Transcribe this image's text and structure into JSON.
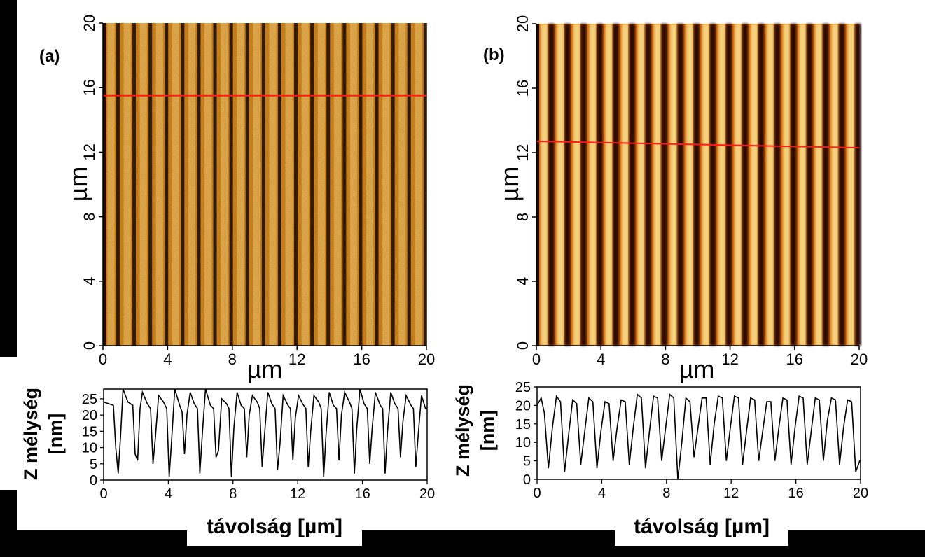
{
  "chart_data": [
    {
      "type": "heatmap",
      "panel_label": "(a)",
      "xlabel": "µm",
      "ylabel": "µm",
      "xlim": [
        0,
        20
      ],
      "ylim": [
        0,
        20
      ],
      "x_ticks": [
        "0",
        "4",
        "8",
        "12",
        "16",
        "20"
      ],
      "y_ticks": [
        "0",
        "4",
        "8",
        "12",
        "16",
        "20"
      ],
      "stripe_count": 20,
      "scan_line_y": [
        15.5,
        15.5
      ],
      "colors": {
        "trough": "#1a0a00",
        "mid": "#d98a1e",
        "peak": "#f6c060"
      }
    },
    {
      "type": "heatmap",
      "panel_label": "(b)",
      "xlabel": "µm",
      "ylabel": "µm",
      "xlim": [
        0,
        20
      ],
      "ylim": [
        0,
        20
      ],
      "x_ticks": [
        "0",
        "4",
        "8",
        "12",
        "16",
        "20"
      ],
      "y_ticks": [
        "0",
        "4",
        "8",
        "12",
        "16",
        "20"
      ],
      "stripe_count": 20,
      "scan_line_y": [
        12.7,
        12.3
      ],
      "colors": {
        "trough": "#1a0500",
        "mid": "#d87012",
        "peak": "#fff2a0"
      }
    },
    {
      "type": "line",
      "xlabel": "távolság [µm]",
      "ylabel_line1": "Z mélység",
      "ylabel_line2": "[nm]",
      "xlim": [
        0,
        20
      ],
      "ylim": [
        0,
        28
      ],
      "x_ticks": [
        "0",
        "4",
        "8",
        "12",
        "16",
        "20"
      ],
      "y_ticks": [
        "0",
        "5",
        "10",
        "15",
        "20",
        "25"
      ],
      "series": [
        {
          "x": [
            0,
            0.3,
            0.6,
            0.75,
            0.9,
            1.05,
            1.2,
            1.5,
            1.8,
            1.95,
            2.1,
            2.25,
            2.4,
            2.7,
            2.9,
            3.05,
            3.2,
            3.4,
            3.7,
            3.9,
            4.05,
            4.2,
            4.4,
            4.7,
            4.85,
            5.0,
            5.15,
            5.35,
            5.6,
            5.8,
            5.95,
            6.1,
            6.3,
            6.6,
            6.8,
            6.95,
            7.1,
            7.3,
            7.6,
            7.75,
            7.9,
            8.05,
            8.25,
            8.5,
            8.7,
            8.85,
            9.0,
            9.2,
            9.5,
            9.65,
            9.8,
            9.95,
            10.15,
            10.4,
            10.6,
            10.75,
            10.9,
            11.1,
            11.4,
            11.55,
            11.7,
            11.85,
            12.05,
            12.3,
            12.5,
            12.65,
            12.8,
            13.0,
            13.3,
            13.45,
            13.6,
            13.75,
            13.95,
            14.2,
            14.4,
            14.55,
            14.7,
            14.9,
            15.2,
            15.35,
            15.5,
            15.65,
            15.85,
            16.1,
            16.3,
            16.45,
            16.6,
            16.8,
            17.1,
            17.25,
            17.4,
            17.55,
            17.75,
            18.0,
            18.2,
            18.35,
            18.5,
            18.7,
            19.0,
            19.15,
            19.3,
            19.45,
            19.65,
            19.9,
            20.0
          ],
          "y": [
            24,
            23.5,
            23,
            10,
            2,
            14,
            28,
            24,
            23,
            8,
            6,
            22,
            27,
            23.5,
            22,
            5,
            13,
            26,
            24,
            22,
            1,
            12,
            28,
            23,
            21,
            8,
            20,
            27,
            23.5,
            22,
            2,
            14,
            28,
            23,
            22,
            7,
            9,
            25,
            23.5,
            22,
            1,
            16,
            27,
            23,
            22,
            7,
            20,
            26,
            24,
            22,
            4,
            14,
            27,
            23.5,
            22,
            3,
            11,
            26,
            23,
            22,
            6,
            19,
            26,
            23.5,
            22,
            4,
            15,
            26,
            24,
            22,
            1,
            14,
            27,
            23,
            22,
            6,
            20,
            27,
            24,
            22,
            2,
            16,
            28,
            23.5,
            22,
            5,
            16,
            27,
            23,
            22,
            2,
            15,
            27,
            23.5,
            22,
            7,
            18,
            26,
            23,
            22,
            4,
            14,
            26,
            22,
            22
          ]
        }
      ]
    },
    {
      "type": "line",
      "xlabel": "távolság [µm]",
      "ylabel_line1": "Z mélység",
      "ylabel_line2": "[nm]",
      "xlim": [
        0,
        20
      ],
      "ylim": [
        0,
        25
      ],
      "x_ticks": [
        "0",
        "4",
        "8",
        "12",
        "16",
        "20"
      ],
      "y_ticks": [
        "0",
        "5",
        "10",
        "15",
        "20",
        "25"
      ],
      "series": [
        {
          "x": [
            0,
            0.25,
            0.45,
            0.7,
            0.95,
            1.2,
            1.45,
            1.7,
            1.95,
            2.2,
            2.45,
            2.7,
            2.95,
            3.2,
            3.45,
            3.7,
            3.95,
            4.2,
            4.45,
            4.7,
            4.95,
            5.2,
            5.45,
            5.7,
            5.95,
            6.2,
            6.45,
            6.7,
            6.95,
            7.2,
            7.45,
            7.7,
            7.95,
            8.2,
            8.45,
            8.7,
            8.95,
            9.2,
            9.45,
            9.7,
            9.95,
            10.2,
            10.45,
            10.7,
            10.95,
            11.2,
            11.45,
            11.7,
            11.95,
            12.2,
            12.45,
            12.7,
            12.95,
            13.2,
            13.45,
            13.7,
            13.95,
            14.2,
            14.45,
            14.7,
            14.95,
            15.2,
            15.45,
            15.7,
            15.95,
            16.2,
            16.45,
            16.7,
            16.95,
            17.2,
            17.45,
            17.7,
            17.95,
            18.2,
            18.45,
            18.7,
            18.95,
            19.2,
            19.45,
            19.7,
            19.95,
            20.0
          ],
          "y": [
            20,
            22,
            18,
            3,
            14,
            22.5,
            21,
            2,
            12,
            21.5,
            20.5,
            4,
            13,
            22,
            21,
            3,
            13,
            21,
            20.5,
            5,
            14,
            21.5,
            21,
            4,
            14,
            23,
            22,
            3,
            13,
            22.5,
            22,
            5,
            14,
            23,
            22,
            0,
            10,
            22,
            21,
            6,
            14,
            22,
            22,
            4,
            15,
            22.5,
            22,
            5,
            14,
            22.5,
            22,
            4,
            13,
            22,
            21.5,
            5,
            13,
            21,
            21,
            5,
            14,
            22,
            21.5,
            4,
            14,
            22.5,
            22,
            4,
            13,
            22,
            21.5,
            5,
            16,
            22,
            21.5,
            4,
            14,
            21.5,
            21,
            2,
            5,
            5
          ]
        }
      ]
    }
  ]
}
